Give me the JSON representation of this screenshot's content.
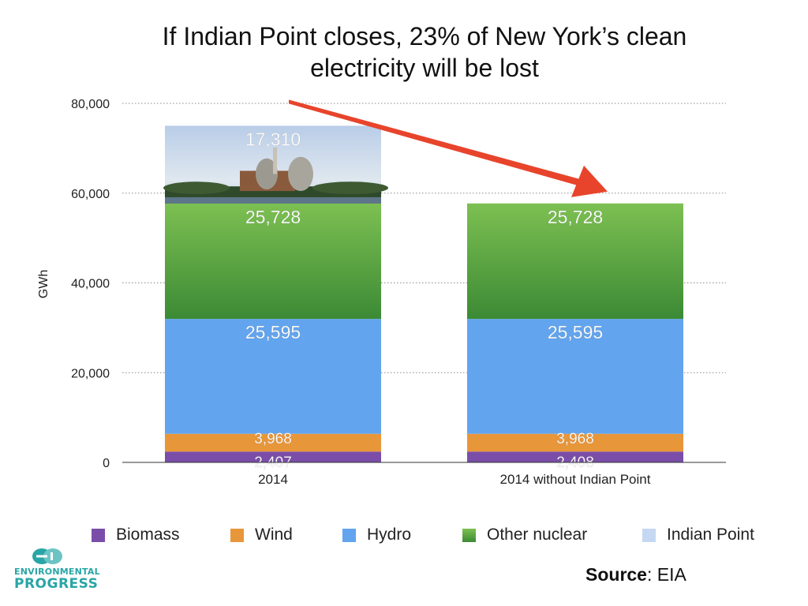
{
  "title_line1": "If Indian Point closes, 23% of New York’s clean",
  "title_line2": "electricity will be lost",
  "chart_data": {
    "type": "bar",
    "stacked": true,
    "title": "If Indian Point closes, 23% of New York’s clean electricity will be lost",
    "xlabel": "",
    "ylabel": "GWh",
    "ylim": [
      0,
      80000
    ],
    "yticks": [
      0,
      20000,
      40000,
      60000,
      80000
    ],
    "ytick_labels": [
      "0",
      "20,000",
      "40,000",
      "60,000",
      "80,000"
    ],
    "grid": true,
    "legend_position": "bottom",
    "categories": [
      "2014",
      "2014 without Indian Point"
    ],
    "series": [
      {
        "name": "Biomass",
        "color": "#7a4ea8",
        "values": [
          2407,
          2408
        ],
        "labels": [
          "2,407",
          "2,408"
        ]
      },
      {
        "name": "Wind",
        "color": "#e8963a",
        "values": [
          3968,
          3968
        ],
        "labels": [
          "3,968",
          "3,968"
        ]
      },
      {
        "name": "Hydro",
        "color": "#62a4ee",
        "values": [
          25595,
          25595
        ],
        "labels": [
          "25,595",
          "25,595"
        ]
      },
      {
        "name": "Other nuclear",
        "color": "#4f9e3f",
        "values": [
          25728,
          25728
        ],
        "labels": [
          "25,728",
          "25,728"
        ]
      },
      {
        "name": "Indian Point",
        "color": "#c5d8f3",
        "values": [
          17310,
          0
        ],
        "labels": [
          "17,310",
          ""
        ]
      }
    ],
    "annotation": "arrow from 2014 bar top to 2014 without Indian Point bar top"
  },
  "source_label": "Source",
  "source_value": ": EIA",
  "logo_line1": "ENVIRONMENTAL",
  "logo_line2": "PROGRESS",
  "colors": {
    "arrow": "#e8442c",
    "logo": "#2aa5a6",
    "grid": "#888888"
  }
}
